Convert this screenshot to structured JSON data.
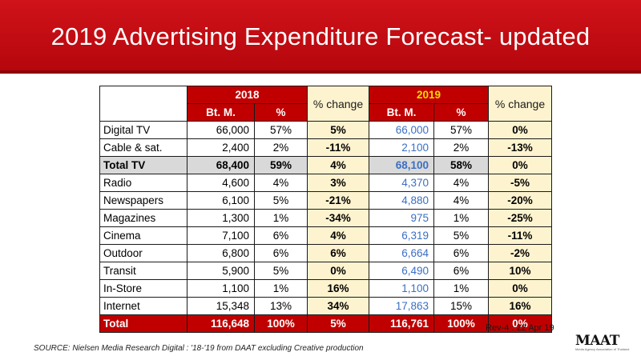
{
  "slide": {
    "title": "2019 Advertising Expenditure Forecast- updated",
    "revision": "Rev-4 : 22 Apr 19",
    "source": "SOURCE: Nielsen Media Research     Digital : '18-'19  from DAAT excluding Creative production",
    "logo_text": "MAAT",
    "logo_subtext": "Media Agency Association of Thailand"
  },
  "colors": {
    "banner_red": "#c00000",
    "change_column_fill": "#fdf3cf",
    "total_tv_fill": "#d9d9d9",
    "year_2019_text": "#ffd700",
    "bt2019_values": "#3a6fc4"
  },
  "table": {
    "year_2018": "2018",
    "year_2019": "2019",
    "change_label_1": "% change",
    "change_label_2": "% change",
    "sub_bt_2018": "Bt. M.",
    "sub_pct_2018": "%",
    "sub_bt_2019": "Bt. M.",
    "sub_pct_2019": "%",
    "rows": [
      {
        "category": "Digital TV",
        "bt2018": "66,000",
        "pct2018": "57%",
        "change1": "5%",
        "bt2019": "66,000",
        "pct2019": "57%",
        "change2": "0%"
      },
      {
        "category": "Cable & sat.",
        "bt2018": "2,400",
        "pct2018": "2%",
        "change1": "-11%",
        "bt2019": "2,100",
        "pct2019": "2%",
        "change2": "-13%"
      },
      {
        "category": "Total TV",
        "bt2018": "68,400",
        "pct2018": "59%",
        "change1": "4%",
        "bt2019": "68,100",
        "pct2019": "58%",
        "change2": "0%"
      },
      {
        "category": "Radio",
        "bt2018": "4,600",
        "pct2018": "4%",
        "change1": "3%",
        "bt2019": "4,370",
        "pct2019": "4%",
        "change2": "-5%"
      },
      {
        "category": "Newspapers",
        "bt2018": "6,100",
        "pct2018": "5%",
        "change1": "-21%",
        "bt2019": "4,880",
        "pct2019": "4%",
        "change2": "-20%"
      },
      {
        "category": "Magazines",
        "bt2018": "1,300",
        "pct2018": "1%",
        "change1": "-34%",
        "bt2019": "975",
        "pct2019": "1%",
        "change2": "-25%"
      },
      {
        "category": "Cinema",
        "bt2018": "7,100",
        "pct2018": "6%",
        "change1": "4%",
        "bt2019": "6,319",
        "pct2019": "5%",
        "change2": "-11%"
      },
      {
        "category": "Outdoor",
        "bt2018": "6,800",
        "pct2018": "6%",
        "change1": "6%",
        "bt2019": "6,664",
        "pct2019": "6%",
        "change2": "-2%"
      },
      {
        "category": "Transit",
        "bt2018": "5,900",
        "pct2018": "5%",
        "change1": "0%",
        "bt2019": "6,490",
        "pct2019": "6%",
        "change2": "10%"
      },
      {
        "category": "In-Store",
        "bt2018": "1,100",
        "pct2018": "1%",
        "change1": "16%",
        "bt2019": "1,100",
        "pct2019": "1%",
        "change2": "0%"
      },
      {
        "category": "Internet",
        "bt2018": "15,348",
        "pct2018": "13%",
        "change1": "34%",
        "bt2019": "17,863",
        "pct2019": "15%",
        "change2": "16%"
      },
      {
        "category": "Total",
        "bt2018": "116,648",
        "pct2018": "100%",
        "change1": "5%",
        "bt2019": "116,761",
        "pct2019": "100%",
        "change2": "0%"
      }
    ]
  }
}
